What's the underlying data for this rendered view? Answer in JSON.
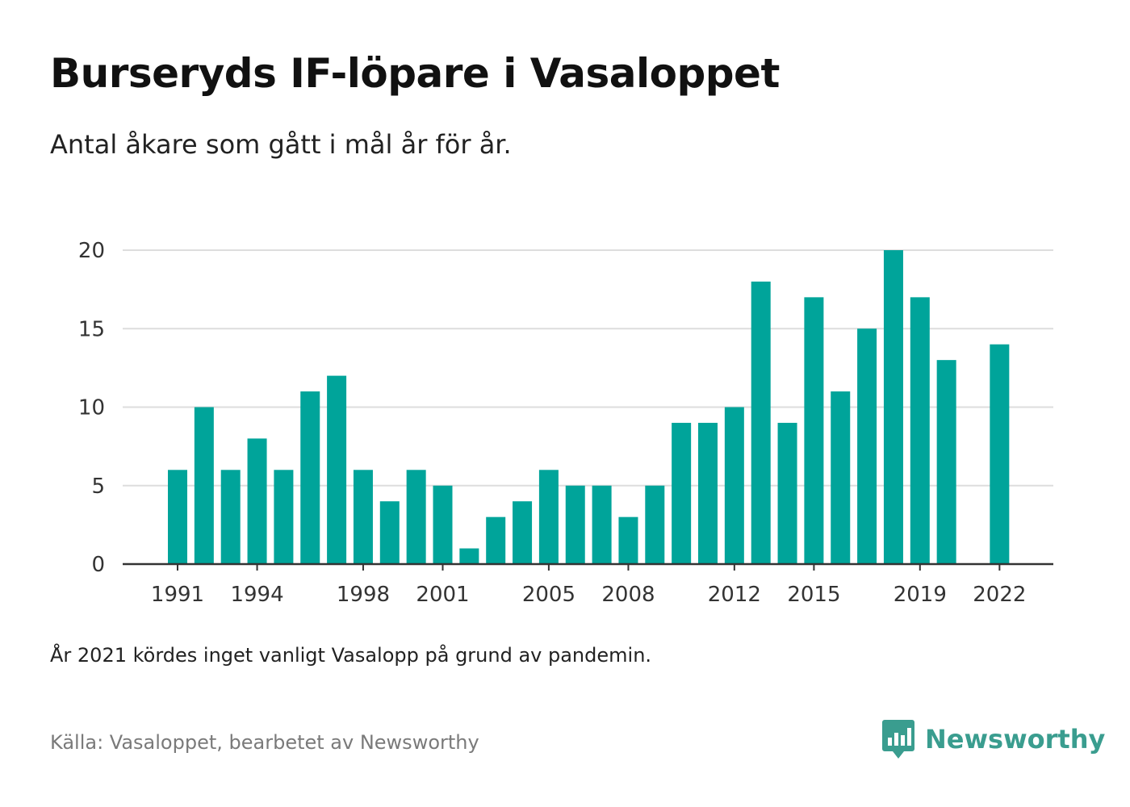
{
  "header": {
    "title": "Burseryds IF-löpare i Vasaloppet",
    "subtitle": "Antal åkare som gått i mål år för år."
  },
  "footer": {
    "note": "År 2021 kördes inget vanligt Vasalopp på grund av pandemin.",
    "source": "Källa: Vasaloppet, bearbetet av Newsworthy",
    "brand": "Newsworthy",
    "brand_icon": "bar-chart-icon"
  },
  "colors": {
    "bar": "#00a49a",
    "grid": "#dddddd",
    "axis": "#333333",
    "tick_text": "#333333",
    "brand": "#3a9d8f"
  },
  "chart_data": {
    "type": "bar",
    "categories": [
      "1991",
      "1992",
      "1993",
      "1994",
      "1995",
      "1996",
      "1997",
      "1998",
      "1999",
      "2000",
      "2001",
      "2002",
      "2003",
      "2004",
      "2005",
      "2006",
      "2007",
      "2008",
      "2009",
      "2010",
      "2011",
      "2012",
      "2013",
      "2014",
      "2015",
      "2016",
      "2017",
      "2018",
      "2019",
      "2020",
      "2021",
      "2022"
    ],
    "values": [
      6,
      10,
      6,
      8,
      6,
      11,
      12,
      6,
      4,
      6,
      5,
      1,
      3,
      4,
      6,
      5,
      5,
      3,
      5,
      9,
      9,
      10,
      18,
      9,
      17,
      11,
      15,
      20,
      17,
      13,
      null,
      14
    ],
    "x_tick_labels": [
      "1991",
      "1994",
      "1998",
      "2001",
      "2005",
      "2008",
      "2012",
      "2015",
      "2019",
      "2022"
    ],
    "y_ticks": [
      0,
      5,
      10,
      15,
      20
    ],
    "ylim": [
      0,
      20
    ],
    "grid": true,
    "legend": false,
    "title": "Burseryds IF-löpare i Vasaloppet",
    "xlabel": "",
    "ylabel": ""
  }
}
